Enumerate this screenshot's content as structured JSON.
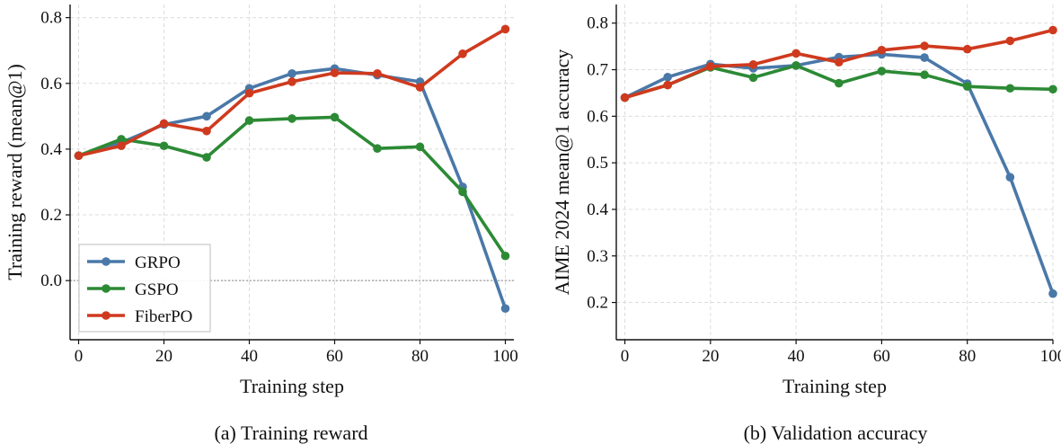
{
  "chart_data": [
    {
      "type": "line",
      "caption": "(a)  Training reward",
      "xlabel": "Training step",
      "ylabel": "Training reward (mean@1)",
      "x": [
        0,
        10,
        20,
        30,
        40,
        50,
        60,
        70,
        80,
        90,
        100
      ],
      "xlim": [
        -2,
        102
      ],
      "ylim": [
        -0.18,
        0.84
      ],
      "xticks": [
        "0",
        "20",
        "40",
        "60",
        "80",
        "100"
      ],
      "yticks": [
        "0.0",
        "0.2",
        "0.4",
        "0.6",
        "0.8"
      ],
      "reference_line_y": 0.0,
      "grid": true,
      "legend_placement": "lower-left",
      "series": [
        {
          "name": "GRPO",
          "color": "#4a78a8",
          "values": [
            0.38,
            0.42,
            0.475,
            0.5,
            0.585,
            0.63,
            0.645,
            0.625,
            0.605,
            0.285,
            -0.085
          ]
        },
        {
          "name": "GSPO",
          "color": "#2c8a35",
          "values": [
            0.38,
            0.43,
            0.41,
            0.375,
            0.487,
            0.493,
            0.497,
            0.402,
            0.407,
            0.27,
            0.075
          ]
        },
        {
          "name": "FiberPO",
          "color": "#cf3a1e",
          "values": [
            0.38,
            0.41,
            0.478,
            0.455,
            0.57,
            0.605,
            0.632,
            0.63,
            0.588,
            0.69,
            0.765
          ]
        }
      ]
    },
    {
      "type": "line",
      "caption": "(b)  Validation accuracy",
      "xlabel": "Training step",
      "ylabel": "AIME 2024  mean@1 accuracy",
      "x": [
        0,
        10,
        20,
        30,
        40,
        50,
        60,
        70,
        80,
        90,
        100
      ],
      "xlim": [
        -2,
        100
      ],
      "ylim": [
        0.12,
        0.84
      ],
      "xticks": [
        "0",
        "20",
        "40",
        "60",
        "80",
        "100"
      ],
      "yticks": [
        "0.2",
        "0.3",
        "0.4",
        "0.5",
        "0.6",
        "0.7",
        "0.8"
      ],
      "grid": true,
      "series": [
        {
          "name": "GRPO",
          "color": "#4a78a8",
          "values": [
            0.64,
            0.684,
            0.712,
            0.703,
            0.709,
            0.727,
            0.733,
            0.726,
            0.67,
            0.469,
            0.219
          ]
        },
        {
          "name": "GSPO",
          "color": "#2c8a35",
          "values": [
            0.64,
            0.667,
            0.705,
            0.683,
            0.709,
            0.671,
            0.697,
            0.689,
            0.664,
            0.66,
            0.658
          ]
        },
        {
          "name": "FiberPO",
          "color": "#cf3a1e",
          "values": [
            0.64,
            0.667,
            0.707,
            0.711,
            0.735,
            0.716,
            0.742,
            0.751,
            0.744,
            0.762,
            0.785
          ]
        }
      ]
    }
  ]
}
